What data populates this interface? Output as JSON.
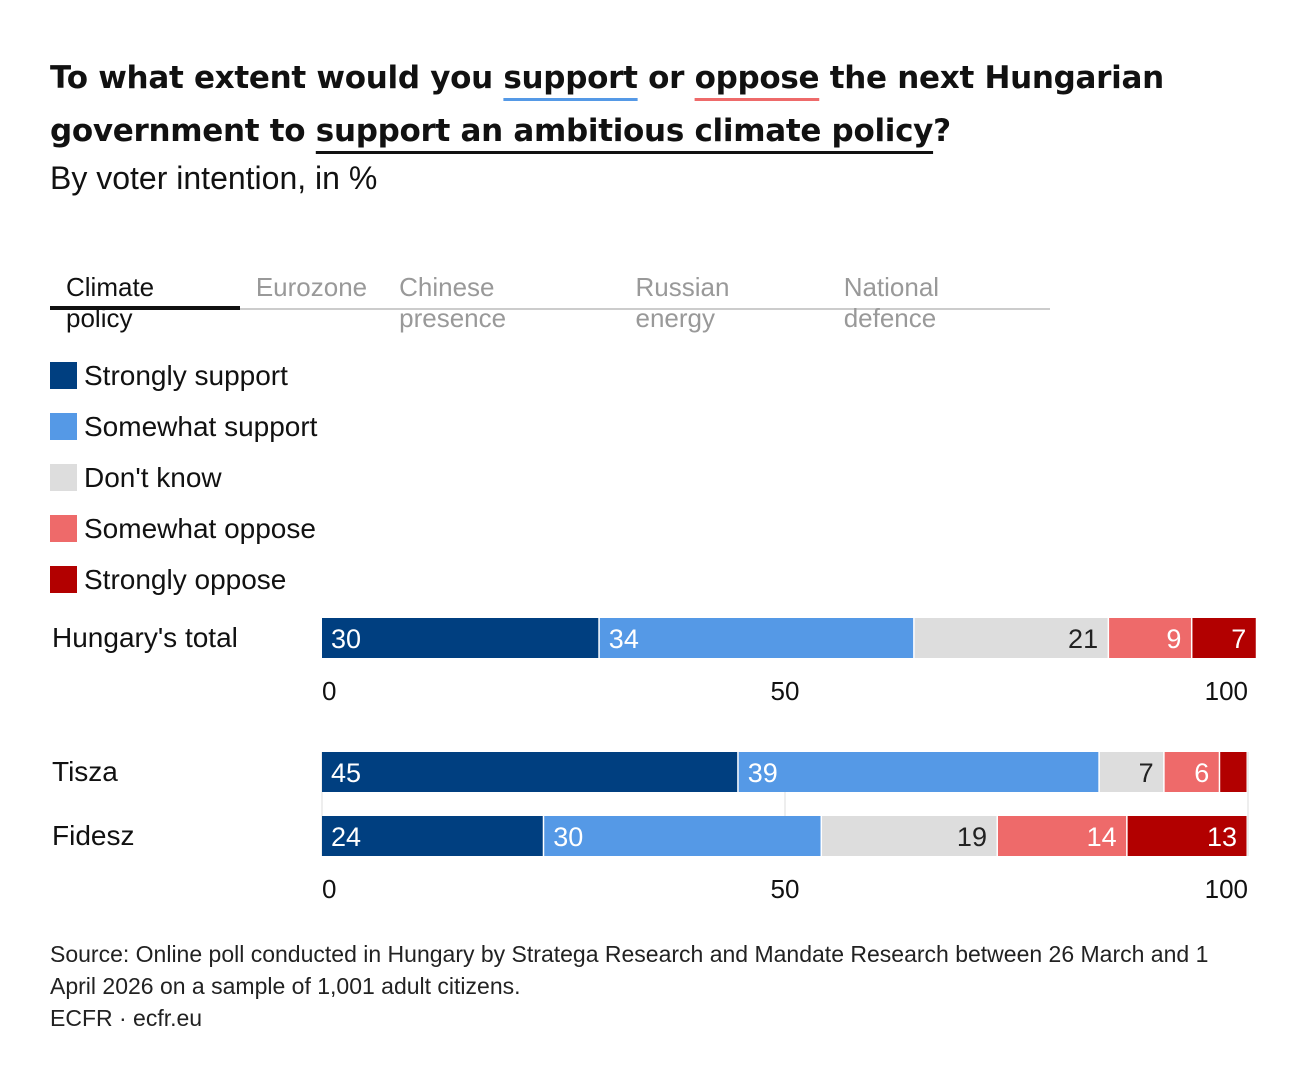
{
  "title": {
    "part1": "To what extent would you ",
    "support": "support",
    "part2": " or ",
    "oppose": "oppose",
    "part3": " the next Hungarian government to ",
    "topic": "support an ambitious climate policy",
    "part4": "?"
  },
  "subtitle": "By voter intention, in %",
  "tabs": [
    "Climate policy",
    "Eurozone",
    "Chinese presence",
    "Russian energy",
    "National defence"
  ],
  "active_tab": 0,
  "colors": {
    "strongly_support": "#003f80",
    "somewhat_support": "#5599e6",
    "dont_know": "#dddddd",
    "somewhat_oppose": "#ee6a6a",
    "strongly_oppose": "#b20000"
  },
  "chart_data": {
    "type": "bar",
    "orientation": "horizontal-stacked",
    "legend": [
      "Strongly support",
      "Somewhat support",
      "Don't know",
      "Somewhat oppose",
      "Strongly oppose"
    ],
    "legend_position": "top-left",
    "xlim": [
      0,
      100
    ],
    "xticks": [
      "0",
      "50",
      "100"
    ],
    "groups": [
      {
        "rows": [
          {
            "label": "Hungary's total",
            "values": [
              30,
              34,
              21,
              9,
              7
            ],
            "labels": [
              "30",
              "34",
              "21",
              "9",
              "7"
            ]
          }
        ]
      },
      {
        "rows": [
          {
            "label": "Tisza",
            "values": [
              45,
              39,
              7,
              6,
              3
            ],
            "labels": [
              "45",
              "39",
              "7",
              "6",
              ""
            ]
          },
          {
            "label": "Fidesz",
            "values": [
              24,
              30,
              19,
              14,
              13
            ],
            "labels": [
              "24",
              "30",
              "19",
              "14",
              "13"
            ]
          }
        ]
      }
    ]
  },
  "footer": {
    "source": "Source: Online poll conducted in Hungary by Stratega Research and Mandate Research between 26 March and 1 April 2026 on a sample of 1,001 adult citizens.",
    "credit": "ECFR · ecfr.eu"
  }
}
